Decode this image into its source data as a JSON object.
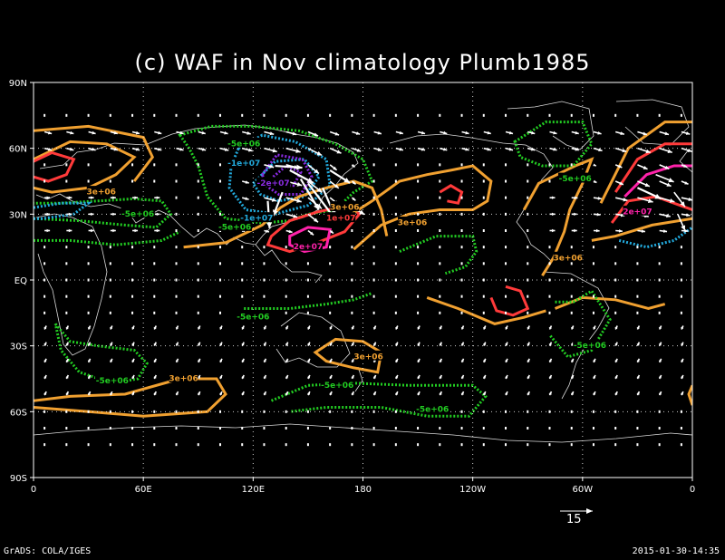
{
  "title": "(c) WAF in Nov climatology Plumb1985",
  "footer_left": "GrADS: COLA/IGES",
  "footer_right": "2015-01-30-14:35",
  "reference_vector_label": "15",
  "chart_data": {
    "type": "map",
    "lat_labels": [
      "90N",
      "60N",
      "30N",
      "EQ",
      "30S",
      "60S",
      "90S"
    ],
    "lat_values": [
      90,
      60,
      30,
      0,
      -30,
      -60,
      -90
    ],
    "lon_labels": [
      "0",
      "60E",
      "120E",
      "180",
      "120W",
      "60W",
      "0"
    ],
    "lon_values": [
      0,
      60,
      120,
      180,
      240,
      300,
      360
    ],
    "grid": true,
    "colors": {
      "neg_5e6": "#22cc22",
      "pos_3e6": "#f0a030",
      "pos_1e7": "#ff3a3a",
      "pos_2e7": "#ff22aa",
      "neg_1e7": "#22aadd",
      "neg_2e7": "#8a2be2",
      "vector": "#ffffff",
      "coast": "#ffffff"
    },
    "contour_labels": [
      {
        "text": "-5e+06",
        "lon": 115,
        "lat": 62
      },
      {
        "text": "-1e+07",
        "lon": 115,
        "lat": 53
      },
      {
        "text": "-2e+07",
        "lon": 131,
        "lat": 44
      },
      {
        "text": "3e+06",
        "lon": 37,
        "lat": 40
      },
      {
        "text": "-5e+06",
        "lon": 57,
        "lat": 30
      },
      {
        "text": "-5e+06",
        "lon": 110,
        "lat": 24
      },
      {
        "text": "-1e+07",
        "lon": 122,
        "lat": 28
      },
      {
        "text": "3e+06",
        "lon": 170,
        "lat": 33
      },
      {
        "text": "1e+07",
        "lon": 168,
        "lat": 28
      },
      {
        "text": "2e+07",
        "lon": 150,
        "lat": 15
      },
      {
        "text": "3e+06",
        "lon": 207,
        "lat": 26
      },
      {
        "text": "-5e+06",
        "lon": 296,
        "lat": 46
      },
      {
        "text": "3e+06",
        "lon": 292,
        "lat": 10
      },
      {
        "text": "2e+07",
        "lon": 330,
        "lat": 31
      },
      {
        "text": "-5e+06",
        "lon": 120,
        "lat": -17
      },
      {
        "text": "-5e+06",
        "lon": 43,
        "lat": -46
      },
      {
        "text": "3e+06",
        "lon": 82,
        "lat": -45
      },
      {
        "text": "3e+06",
        "lon": 183,
        "lat": -35
      },
      {
        "text": "-5e+06",
        "lon": 166,
        "lat": -48
      },
      {
        "text": "-5e+06",
        "lon": 218,
        "lat": -59
      },
      {
        "text": "-5e+06",
        "lon": 304,
        "lat": -30
      }
    ]
  }
}
